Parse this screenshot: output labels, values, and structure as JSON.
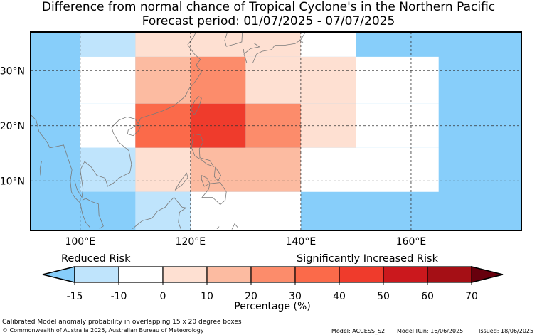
{
  "title": "Difference from normal chance of Tropical Cyclone's in the Northern Pacific",
  "subtitle": "Forecast period: 01/07/2025 - 07/07/2025",
  "map": {
    "lon_range": [
      91,
      180
    ],
    "lat_range": [
      1,
      37
    ],
    "lon_ticks": [
      {
        "v": 100,
        "label": "100°E"
      },
      {
        "v": 120,
        "label": "120°E"
      },
      {
        "v": 140,
        "label": "140°E"
      },
      {
        "v": 160,
        "label": "160°E"
      }
    ],
    "lat_ticks": [
      {
        "v": 10,
        "label": "10°N"
      },
      {
        "v": 20,
        "label": "20°N"
      },
      {
        "v": 30,
        "label": "30°N"
      }
    ],
    "ocean_color": "#87cefa",
    "cells": [
      {
        "lon0": 100,
        "lon1": 110,
        "lat0": 32.5,
        "lat1": 37,
        "value": -10,
        "color": "#bfe4fc"
      },
      {
        "lon0": 110,
        "lon1": 140,
        "lat0": 32.5,
        "lat1": 37,
        "value": 5,
        "color": "#fee0d2"
      },
      {
        "lon0": 140,
        "lon1": 150,
        "lat0": 32.5,
        "lat1": 37,
        "value": -5,
        "color": "#ffffff"
      },
      {
        "lon0": 100,
        "lon1": 110,
        "lat0": 24,
        "lat1": 32.5,
        "value": -5,
        "color": "#ffffff"
      },
      {
        "lon0": 110,
        "lon1": 130,
        "lat0": 24,
        "lat1": 32.5,
        "value": 15,
        "color": "#fcbba1"
      },
      {
        "lon0": 120,
        "lon1": 130,
        "lat0": 24,
        "lat1": 32.5,
        "value": 25,
        "color": "#fc8c6b"
      },
      {
        "lon0": 130,
        "lon1": 140,
        "lat0": 24,
        "lat1": 32.5,
        "value": 5,
        "color": "#fee0d2"
      },
      {
        "lon0": 140,
        "lon1": 150,
        "lat0": 24,
        "lat1": 32.5,
        "value": 5,
        "color": "#fee0d2"
      },
      {
        "lon0": 150,
        "lon1": 165,
        "lat0": 24,
        "lat1": 32.5,
        "value": -5,
        "color": "#ffffff"
      },
      {
        "lon0": 100,
        "lon1": 110,
        "lat0": 16,
        "lat1": 24,
        "value": -5,
        "color": "#ffffff"
      },
      {
        "lon0": 110,
        "lon1": 120,
        "lat0": 16,
        "lat1": 24,
        "value": 35,
        "color": "#fb6a4a"
      },
      {
        "lon0": 120,
        "lon1": 130,
        "lat0": 16,
        "lat1": 24,
        "value": 45,
        "color": "#ef3b2c"
      },
      {
        "lon0": 130,
        "lon1": 140,
        "lat0": 16,
        "lat1": 24,
        "value": 25,
        "color": "#fc8c6b"
      },
      {
        "lon0": 140,
        "lon1": 150,
        "lat0": 16,
        "lat1": 24,
        "value": 5,
        "color": "#fee0d2"
      },
      {
        "lon0": 150,
        "lon1": 165,
        "lat0": 16,
        "lat1": 24,
        "value": -5,
        "color": "#ffffff"
      },
      {
        "lon0": 100,
        "lon1": 110,
        "lat0": 8,
        "lat1": 16,
        "value": -10,
        "color": "#bfe4fc"
      },
      {
        "lon0": 110,
        "lon1": 120,
        "lat0": 8,
        "lat1": 16,
        "value": 5,
        "color": "#fee0d2"
      },
      {
        "lon0": 120,
        "lon1": 140,
        "lat0": 8,
        "lat1": 16,
        "value": 15,
        "color": "#fcbba1"
      },
      {
        "lon0": 140,
        "lon1": 150,
        "lat0": 8,
        "lat1": 16,
        "value": -5,
        "color": "#ffffff"
      },
      {
        "lon0": 150,
        "lon1": 165,
        "lat0": 8,
        "lat1": 16,
        "value": -5,
        "color": "#ffffff"
      },
      {
        "lon0": 100,
        "lon1": 110,
        "lat0": 1,
        "lat1": 8,
        "value": -15,
        "color": "#87cefa"
      },
      {
        "lon0": 110,
        "lon1": 120,
        "lat0": 1,
        "lat1": 8,
        "value": -10,
        "color": "#bfe4fc"
      },
      {
        "lon0": 120,
        "lon1": 140,
        "lat0": 1,
        "lat1": 8,
        "value": -5,
        "color": "#ffffff"
      }
    ]
  },
  "legend": {
    "reduced_label": "Reduced Risk",
    "increased_label": "Significantly Increased Risk",
    "ticks": [
      "-15",
      "-10",
      "0",
      "10",
      "20",
      "30",
      "40",
      "50",
      "60",
      "70"
    ],
    "colors": [
      "#bfe4fc",
      "#ffffff",
      "#fee0d2",
      "#fcbba1",
      "#fc8c6b",
      "#fb6a4a",
      "#ef3b2c",
      "#cb181d",
      "#a50f15"
    ],
    "under_color": "#87cefa",
    "over_color": "#67000d",
    "label": "Percentage (%)"
  },
  "footer": {
    "line1": "Calibrated Model anomaly probability in overlapping 15 x 20 degree boxes",
    "line2": "© Commonwealth of Australia 2025, Australian Bureau of Meteorology",
    "model": "Model: ACCESS_S2",
    "model_run": "Model Run: 16/06/2025",
    "issued": "Issued: 18/06/2025"
  }
}
